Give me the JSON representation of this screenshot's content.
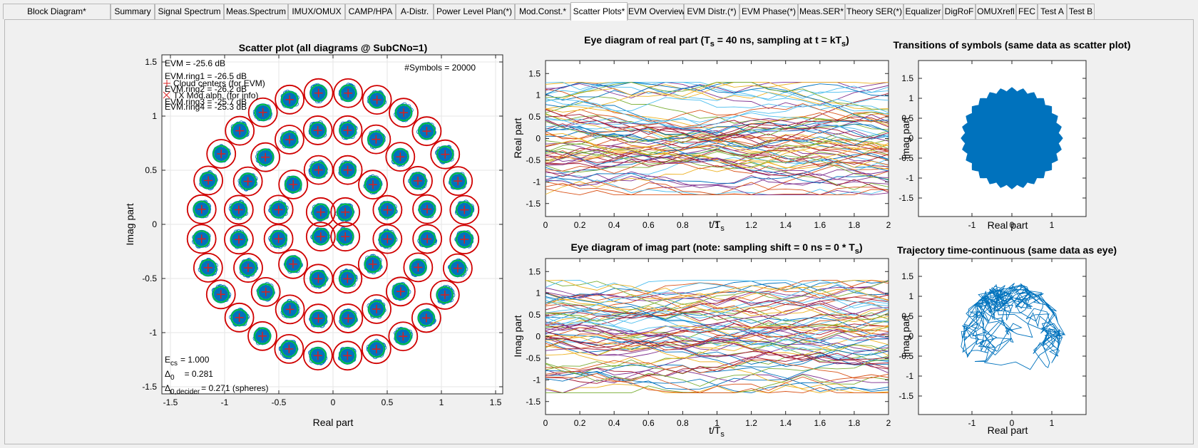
{
  "tabs": [
    {
      "label": "Block Diagram*",
      "w": 151
    },
    {
      "label": "Summary",
      "w": 62
    },
    {
      "label": "Signal Spectrum",
      "w": 97
    },
    {
      "label": "Meas.Spectrum",
      "w": 90
    },
    {
      "label": "IMUX/OMUX",
      "w": 80
    },
    {
      "label": "CAMP/HPA",
      "w": 71
    },
    {
      "label": "A-Distr.",
      "w": 53
    },
    {
      "label": "Power Level Plan(*)",
      "w": 114
    },
    {
      "label": "Mod.Const.*",
      "w": 78
    },
    {
      "label": "Scatter Plots*",
      "w": 80,
      "active": true
    },
    {
      "label": "EVM Overview",
      "w": 79
    },
    {
      "label": "EVM Distr.(*)",
      "w": 78
    },
    {
      "label": "EVM Phase(*)",
      "w": 82
    },
    {
      "label": "Meas.SER*",
      "w": 66
    },
    {
      "label": "Theory SER(*)",
      "w": 82
    },
    {
      "label": "Equalizer",
      "w": 55
    },
    {
      "label": "DigRoF",
      "w": 46
    },
    {
      "label": "OMUXrefl",
      "w": 57
    },
    {
      "label": "FEC",
      "w": 30
    },
    {
      "label": "Test A",
      "w": 41
    },
    {
      "label": "Test B",
      "w": 39
    }
  ],
  "colors": {
    "marker": "#0072bd",
    "cloud_center": "#d92020",
    "tx_alph": "#00c040",
    "circle": "#d00000"
  },
  "scatter": {
    "title": "Scatter plot (all diagrams @ SubCNo=1)",
    "xlabel": "Real part",
    "ylabel": "Imag part",
    "xticks": [
      "-1.5",
      "-1",
      "-0.5",
      "0",
      "0.5",
      "1",
      "1.5"
    ],
    "yticks": [
      "1.5",
      "1",
      "0.5",
      "0",
      "-0.5",
      "-1",
      "-1.5"
    ],
    "evm": "EVM = -25.6 dB",
    "evm_ring1": "EVM.ring1 = -26.5 dB",
    "evm_ring2": "EVM.ring2 = -26.2 dB",
    "evm_ring3": "EVM.ring3 = -25.7 dB",
    "evm_ring4": "EVM.ring4 = -25.3 dB",
    "legend1": "Cloud centers (for EVM)",
    "legend2": "TX Mod.alph. (for info)",
    "nsymbols": "#Symbols = 20000",
    "ecs_label": "E",
    "ecs_sub": "cs",
    "ecs_value": "= 1.000",
    "d0_label": "Δ",
    "d0_sub": "0",
    "d0_value": "= 0.281",
    "d0dec_label": "Δ",
    "d0dec_sub": "0,decider",
    "d0dec_value": "= 0.271 (spheres)"
  },
  "eye_real": {
    "title_a": "Eye diagram of real part   (T",
    "title_b": " = 40 ns, sampling at t = kT",
    "sub": "s",
    "title_c": ")",
    "xlabel": "t/T",
    "xlabel_sub": "s",
    "ylabel": "Real part",
    "xticks": [
      "0",
      "0.2",
      "0.4",
      "0.6",
      "0.8",
      "1",
      "1.2",
      "1.4",
      "1.6",
      "1.8",
      "2"
    ],
    "yticks": [
      "1.5",
      "1",
      "0.5",
      "0",
      "-0.5",
      "-1",
      "-1.5"
    ]
  },
  "eye_imag": {
    "title_a": "Eye diagram of imag part   (note: sampling shift = 0 ns = 0 * T",
    "sub": "s",
    "title_c": ")",
    "xlabel": "t/T",
    "xlabel_sub": "s",
    "ylabel": "Imag part",
    "xticks": [
      "0",
      "0.2",
      "0.4",
      "0.6",
      "0.8",
      "1",
      "1.2",
      "1.4",
      "1.6",
      "1.8",
      "2"
    ],
    "yticks": [
      "1.5",
      "1",
      "0.5",
      "0",
      "-0.5",
      "-1",
      "-1.5"
    ]
  },
  "trans": {
    "title": "Transitions of symbols  (same data as scatter plot)",
    "xlabel": "Real part",
    "ylabel": "Imag part",
    "xticks": [
      "-1",
      "0",
      "1"
    ],
    "yticks": [
      "1.5",
      "1",
      "0.5",
      "0",
      "-0.5",
      "-1",
      "-1.5"
    ]
  },
  "traj": {
    "title": "Trajectory time-continuous  (same data as eye)",
    "xlabel": "Real part",
    "ylabel": "Imag part",
    "xticks": [
      "-1",
      "0",
      "1"
    ],
    "yticks": [
      "1.5",
      "1",
      "0.5",
      "0",
      "-0.5",
      "-1",
      "-1.5"
    ]
  }
}
